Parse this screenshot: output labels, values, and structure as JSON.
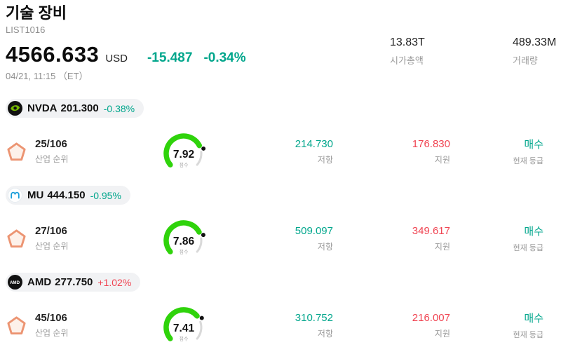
{
  "colors": {
    "up": "#f04452",
    "down": "#00a68c",
    "gauge_green": "#2fd30b",
    "pentagon": "#ec9472"
  },
  "header": {
    "title": "기술 장비",
    "subtitle": "LIST1016",
    "price": "4566.633",
    "currency": "USD",
    "change_abs": "-15.487",
    "change_pct": "-0.34%",
    "change_dir": "down",
    "datetime": "04/21, 11:15 （ET）",
    "stats": [
      {
        "value": "13.83T",
        "label": "시가총액"
      },
      {
        "value": "489.33M",
        "label": "거래량"
      }
    ]
  },
  "labels": {
    "industry_rank": "산업 순위",
    "score": "점수",
    "resistance": "저항",
    "support": "지원",
    "current_rating": "현재 등급"
  },
  "stocks": [
    {
      "ticker": "NVDA",
      "price": "201.300",
      "change": "-0.38%",
      "change_dir": "down",
      "logo": "nvda",
      "rank": "25/106",
      "score": "7.92",
      "score_value": 7.92,
      "resistance": "214.730",
      "support": "176.830",
      "rating": "매수"
    },
    {
      "ticker": "MU",
      "price": "444.150",
      "change": "-0.95%",
      "change_dir": "down",
      "logo": "mu",
      "rank": "27/106",
      "score": "7.86",
      "score_value": 7.86,
      "resistance": "509.097",
      "support": "349.617",
      "rating": "매수"
    },
    {
      "ticker": "AMD",
      "price": "277.750",
      "change": "+1.02%",
      "change_dir": "up",
      "logo": "amd",
      "rank": "45/106",
      "score": "7.41",
      "score_value": 7.41,
      "resistance": "310.752",
      "support": "216.007",
      "rating": "매수"
    }
  ]
}
